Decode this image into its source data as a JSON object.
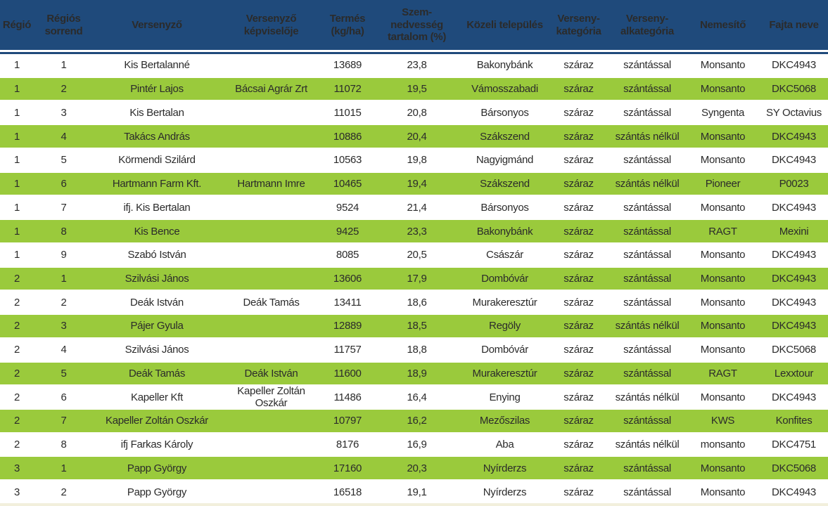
{
  "colors": {
    "header_bg": "#1F4A7B",
    "header_text": "#FFFFFF",
    "row_green": "#9ACA3C",
    "row_white": "#FFFFFF",
    "body_text": "#2B2B2B",
    "bottom_strip": "#F2EFDC"
  },
  "table": {
    "columns": [
      {
        "key": "regio",
        "label": "Régió"
      },
      {
        "key": "sorrend",
        "label": "Régiós sorrend"
      },
      {
        "key": "versenyzo",
        "label": "Versenyző"
      },
      {
        "key": "kepviselo",
        "label": "Versenyző képviselője"
      },
      {
        "key": "termes",
        "label": "Termés (kg/ha)"
      },
      {
        "key": "nedvesseg",
        "label": "Szem-nedvesség tartalom (%)"
      },
      {
        "key": "telepules",
        "label": "Közeli település"
      },
      {
        "key": "kategoria",
        "label": "Verseny-kategória"
      },
      {
        "key": "alkategoria",
        "label": "Verseny-alkategória"
      },
      {
        "key": "nemesito",
        "label": "Nemesítő"
      },
      {
        "key": "fajta",
        "label": "Fajta neve"
      }
    ],
    "rows": [
      [
        "1",
        "1",
        "Kis Bertalanné",
        "",
        "13689",
        "23,8",
        "Bakonybánk",
        "száraz",
        "szántással",
        "Monsanto",
        "DKC4943"
      ],
      [
        "1",
        "2",
        "Pintér Lajos",
        "Bácsai Agrár Zrt",
        "11072",
        "19,5",
        "Vámosszabadi",
        "száraz",
        "szántással",
        "Monsanto",
        "DKC5068"
      ],
      [
        "1",
        "3",
        "Kis Bertalan",
        "",
        "11015",
        "20,8",
        "Bársonyos",
        "száraz",
        "szántással",
        "Syngenta",
        "SY Octavius"
      ],
      [
        "1",
        "4",
        "Takács András",
        "",
        "10886",
        "20,4",
        "Szákszend",
        "száraz",
        "szántás nélkül",
        "Monsanto",
        "DKC4943"
      ],
      [
        "1",
        "5",
        "Körmendi Szilárd",
        "",
        "10563",
        "19,8",
        "Nagyigmánd",
        "száraz",
        "szántással",
        "Monsanto",
        "DKC4943"
      ],
      [
        "1",
        "6",
        "Hartmann Farm Kft.",
        "Hartmann Imre",
        "10465",
        "19,4",
        "Szákszend",
        "száraz",
        "szántás nélkül",
        "Pioneer",
        "P0023"
      ],
      [
        "1",
        "7",
        "ifj. Kis Bertalan",
        "",
        "9524",
        "21,4",
        "Bársonyos",
        "száraz",
        "szántással",
        "Monsanto",
        "DKC4943"
      ],
      [
        "1",
        "8",
        "Kis Bence",
        "",
        "9425",
        "23,3",
        "Bakonybánk",
        "száraz",
        "szántással",
        "RAGT",
        "Mexini"
      ],
      [
        "1",
        "9",
        "Szabó István",
        "",
        "8085",
        "20,5",
        "Császár",
        "száraz",
        "szántással",
        "Monsanto",
        "DKC4943"
      ],
      [
        "2",
        "1",
        "Szilvási János",
        "",
        "13606",
        "17,9",
        "Dombóvár",
        "száraz",
        "szántással",
        "Monsanto",
        "DKC4943"
      ],
      [
        "2",
        "2",
        "Deák István",
        "Deák Tamás",
        "13411",
        "18,6",
        "Murakeresztúr",
        "száraz",
        "szántással",
        "Monsanto",
        "DKC4943"
      ],
      [
        "2",
        "3",
        "Pájer Gyula",
        "",
        "12889",
        "18,5",
        "Regöly",
        "száraz",
        "szántás nélkül",
        "Monsanto",
        "DKC4943"
      ],
      [
        "2",
        "4",
        "Szilvási János",
        "",
        "11757",
        "18,8",
        "Dombóvár",
        "száraz",
        "szántással",
        "Monsanto",
        "DKC5068"
      ],
      [
        "2",
        "5",
        "Deák Tamás",
        "Deák István",
        "11600",
        "18,9",
        "Murakeresztúr",
        "száraz",
        "szántással",
        "RAGT",
        "Lexxtour"
      ],
      [
        "2",
        "6",
        "Kapeller Kft",
        "Kapeller Zoltán Oszkár",
        "11486",
        "16,4",
        "Enying",
        "száraz",
        "szántás nélkül",
        "Monsanto",
        "DKC4943"
      ],
      [
        "2",
        "7",
        "Kapeller Zoltán Oszkár",
        "",
        "10797",
        "16,2",
        "Mezőszilas",
        "száraz",
        "szántással",
        "KWS",
        "Konfites"
      ],
      [
        "2",
        "8",
        "ifj Farkas Károly",
        "",
        "8176",
        "16,9",
        "Aba",
        "száraz",
        "szántás nélkül",
        "monsanto",
        "DKC4751"
      ],
      [
        "3",
        "1",
        "Papp György",
        "",
        "17160",
        "20,3",
        "Nyírderzs",
        "száraz",
        "szántással",
        "Monsanto",
        "DKC5068"
      ],
      [
        "3",
        "2",
        "Papp György",
        "",
        "16518",
        "19,1",
        "Nyírderzs",
        "száraz",
        "szántással",
        "Monsanto",
        "DKC4943"
      ]
    ]
  }
}
